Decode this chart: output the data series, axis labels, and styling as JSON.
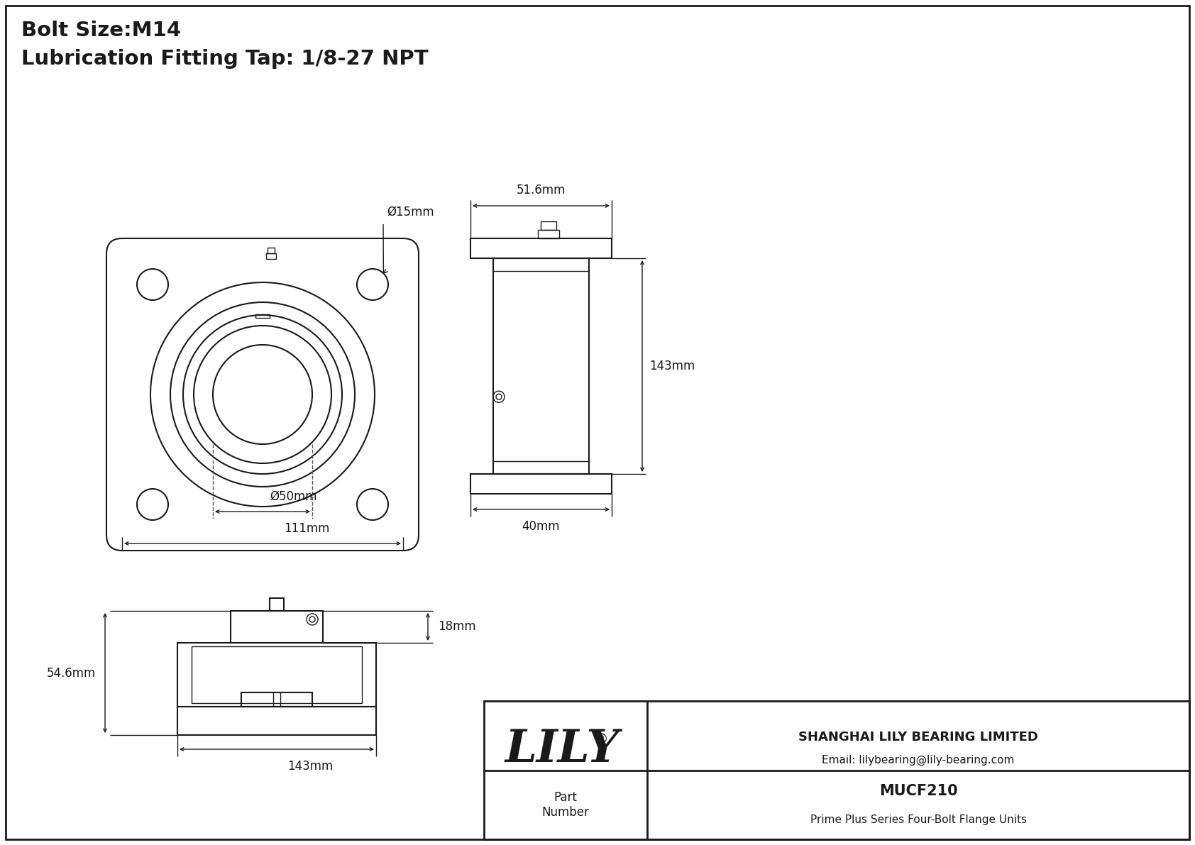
{
  "title_line1": "Bolt Size:M14",
  "title_line2": "Lubrication Fitting Tap: 1/8-27 NPT",
  "bg_color": "#ffffff",
  "line_color": "#1a1a1a",
  "company_name": "SHANGHAI LILY BEARING LIMITED",
  "company_email": "Email: lilybearing@lily-bearing.com",
  "part_label": "Part\nNumber",
  "part_number": "MUCF210",
  "part_desc": "Prime Plus Series Four-Bolt Flange Units",
  "lily_text": "LILY",
  "dim_15mm": "Ø15mm",
  "dim_50mm": "Ø50mm",
  "dim_111mm": "111mm",
  "dim_51_6mm": "51.6mm",
  "dim_143mm_right": "143mm",
  "dim_40mm": "40mm",
  "dim_18mm": "18mm",
  "dim_54_6mm": "54.6mm",
  "dim_143mm_bottom": "143mm"
}
